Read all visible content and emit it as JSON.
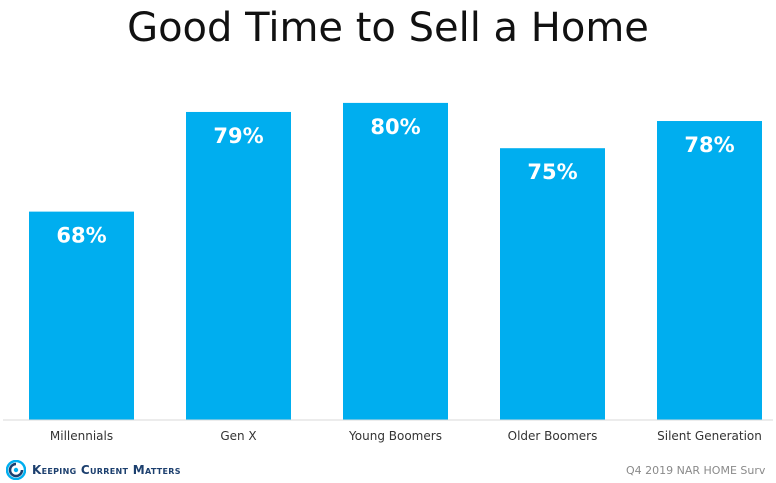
{
  "chart_data": {
    "type": "bar",
    "title": "Good Time to Sell a Home",
    "categories": [
      "Millennials",
      "Gen X",
      "Young Boomers",
      "Older Boomers",
      "Silent Generation"
    ],
    "values": [
      68,
      79,
      80,
      75,
      78
    ],
    "value_labels": [
      "68%",
      "79%",
      "80%",
      "75%",
      "78%"
    ],
    "xlabel": "",
    "ylabel": "",
    "ylim": [
      45,
      81
    ],
    "grid": false,
    "legend": "none",
    "bar_color": "#00aeef",
    "label_color": "#ffffff"
  },
  "footer": {
    "brand": "Keeping Current Matters",
    "brand_color": "#1c3f6e",
    "logo_icon": "kcm-swirl-icon",
    "source": "Q4 2019 NAR HOME Surv"
  }
}
